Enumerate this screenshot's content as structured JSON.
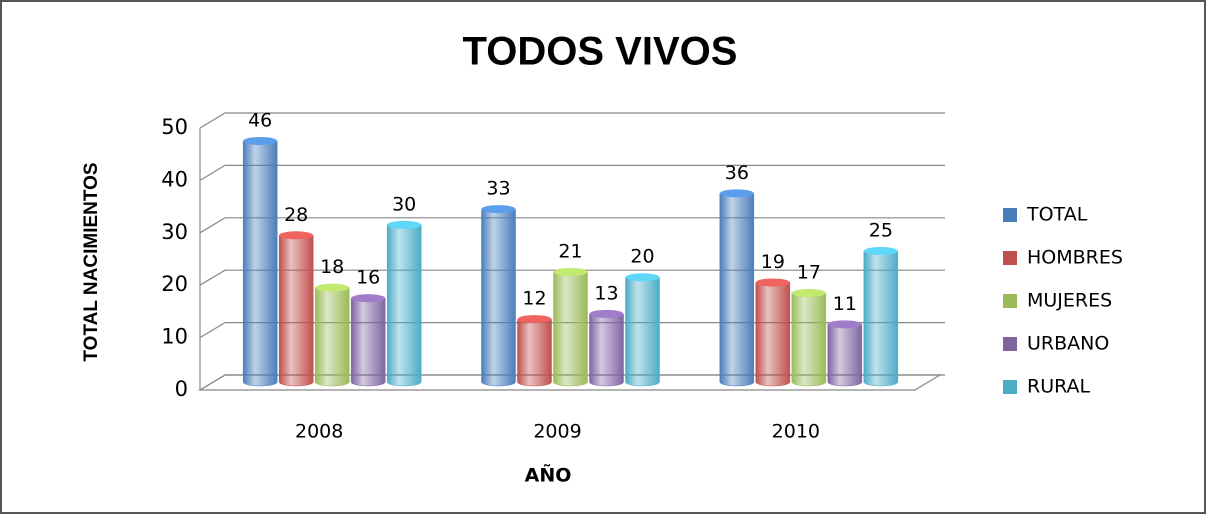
{
  "chart_data": {
    "type": "bar",
    "title": "TODOS VIVOS",
    "x_label": "AÑO",
    "y_label": "TOTAL NACIMIENTOS",
    "categories": [
      "2008",
      "2009",
      "2010"
    ],
    "series": [
      {
        "name": "TOTAL",
        "color": "#4a7ebb",
        "values": [
          46,
          33,
          36
        ]
      },
      {
        "name": "HOMBRES",
        "color": "#c0504d",
        "values": [
          28,
          12,
          19
        ]
      },
      {
        "name": "MUJERES",
        "color": "#9bbb59",
        "values": [
          18,
          21,
          17
        ]
      },
      {
        "name": "URBANO",
        "color": "#8064a2",
        "values": [
          16,
          13,
          11
        ]
      },
      {
        "name": "RURAL",
        "color": "#4bacc6",
        "values": [
          30,
          20,
          25
        ]
      }
    ],
    "ylim": [
      0,
      50
    ],
    "yticks": [
      0,
      10,
      20,
      30,
      40,
      50
    ],
    "grid": true,
    "legend": "right"
  }
}
